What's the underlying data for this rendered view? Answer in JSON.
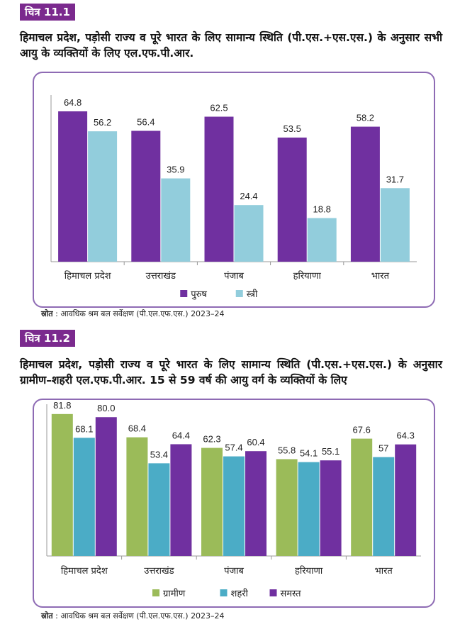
{
  "figures": [
    {
      "tag": "चित्र 11.1",
      "title": "हिमाचल प्रदेश, पड़ोसी राज्य व पूरे भारत के लिए सामान्य स्थिति (पी.एस.+एस.एस.) के अनुसार सभी आयु के व्यक्तियों के लिए एल.एफ.पी.आर.",
      "source_label": "स्रोत",
      "source_text": ": आवधिक श्रम बल सर्वेक्षण (पी.एल.एफ.एस.) 2023–24"
    },
    {
      "tag": "चित्र 11.2",
      "title": "हिमाचल प्रदेश, पड़ोसी राज्य व पूरे भारत के लिए सामान्य स्थिति (पी.एस.+एस.एस.) के अनुसार ग्रामीण–शहरी एल.एफ.पी.आर. 15 से 59 वर्ष की आयु वर्ग के व्यक्तियों के लिए",
      "source_label": "स्रोत",
      "source_text": ": आवधिक श्रम बल सर्वेक्षण (पी.एल.एफ.एस.) 2023–24"
    }
  ],
  "chart_data": [
    {
      "type": "bar",
      "title": "",
      "xlabel": "",
      "ylabel": "",
      "ylim": [
        0,
        70
      ],
      "grid": false,
      "legend_position": "bottom",
      "categories": [
        "हिमाचल प्रदेश",
        "उत्तराखंड",
        "पंजाब",
        "हरियाणा",
        "भारत"
      ],
      "series": [
        {
          "name": "पुरुष",
          "color": "#7030a0",
          "values": [
            64.8,
            56.4,
            62.5,
            53.5,
            58.2
          ],
          "labels": [
            "64.8",
            "56.4",
            "62.5",
            "53.5",
            "58.2"
          ]
        },
        {
          "name": "स्त्री",
          "color": "#92cddc",
          "values": [
            56.2,
            35.9,
            24.4,
            18.8,
            31.7
          ],
          "labels": [
            "56.2",
            "35.9",
            "24.4",
            "18.8",
            "31.7"
          ]
        }
      ]
    },
    {
      "type": "bar",
      "title": "",
      "xlabel": "",
      "ylabel": "",
      "ylim": [
        0,
        85
      ],
      "grid": false,
      "legend_position": "bottom",
      "categories": [
        "हिमाचल प्रदेश",
        "उत्तराखंड",
        "पंजाब",
        "हरियाणा",
        "भारत"
      ],
      "series": [
        {
          "name": "ग्रामीण",
          "color": "#9bbb59",
          "values": [
            81.8,
            68.4,
            62.3,
            55.8,
            67.6
          ],
          "labels": [
            "81.8",
            "68.4",
            "62.3",
            "55.8",
            "67.6"
          ]
        },
        {
          "name": "शहरी",
          "color": "#4bacc6",
          "values": [
            68.1,
            53.4,
            57.4,
            54.1,
            57
          ],
          "labels": [
            "68.1",
            "53.4",
            "57.4",
            "54.1",
            "57"
          ]
        },
        {
          "name": "समस्त",
          "color": "#7030a0",
          "values": [
            80.0,
            64.4,
            60.4,
            55.1,
            64.3
          ],
          "labels": [
            "80.0",
            "64.4",
            "60.4",
            "55.1",
            "64.3"
          ]
        }
      ]
    }
  ]
}
